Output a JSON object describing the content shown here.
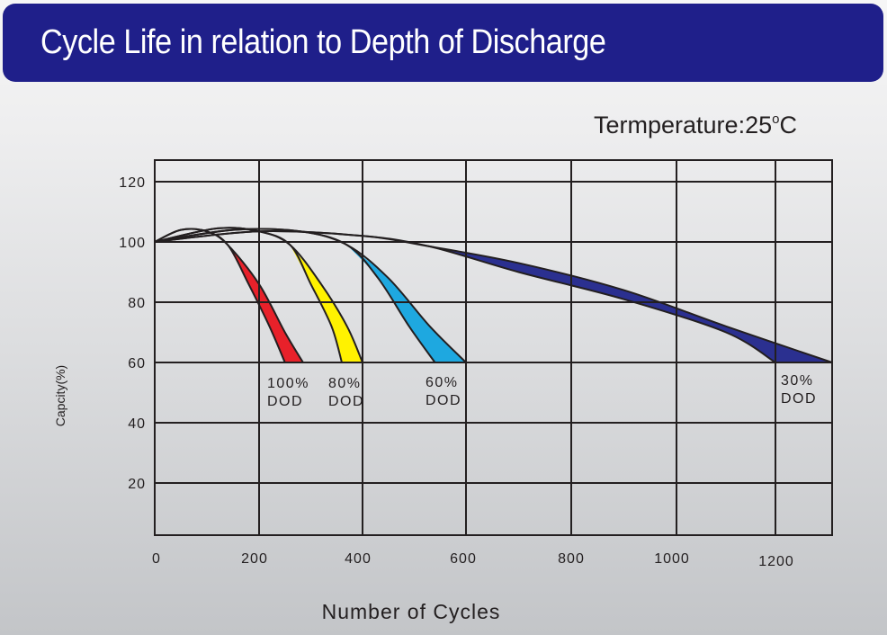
{
  "header": {
    "title": "Cycle Life in relation to Depth of Discharge"
  },
  "annotation": {
    "temperature_label": "Termperature:25",
    "temperature_unit_degree": "o",
    "temperature_unit": "C"
  },
  "chart_data": {
    "type": "area",
    "title": "Cycle Life in relation to Depth of Discharge",
    "subtitle": "Termperature:25°C",
    "xlabel": "Number of Cycles",
    "ylabel": "Capcity(%)",
    "xlim": [
      0,
      1300
    ],
    "ylim": [
      0,
      130
    ],
    "x_ticks": [
      0,
      200,
      400,
      600,
      800,
      1000,
      1200
    ],
    "x_tick_labels": [
      "0",
      "200",
      "400",
      "600",
      "800",
      "1000",
      "1200"
    ],
    "y_ticks": [
      20,
      40,
      60,
      80,
      100,
      120
    ],
    "y_tick_labels": [
      "20",
      "40",
      "60",
      "80",
      "100",
      "120"
    ],
    "grid": true,
    "series": [
      {
        "name": "100% DOD",
        "label_line1": "100%",
        "label_line2": "DOD",
        "color": "#e8212a",
        "upper": [
          [
            0,
            100
          ],
          [
            50,
            104
          ],
          [
            100,
            103.5
          ],
          [
            140,
            99
          ],
          [
            200,
            86
          ],
          [
            250,
            70
          ],
          [
            285,
            60
          ]
        ],
        "lower": [
          [
            0,
            100
          ],
          [
            50,
            104
          ],
          [
            100,
            103.5
          ],
          [
            140,
            99
          ],
          [
            180,
            86
          ],
          [
            220,
            72
          ],
          [
            250,
            60
          ]
        ]
      },
      {
        "name": "80% DOD",
        "label_line1": "80%",
        "label_line2": "DOD",
        "color": "#fff200",
        "upper": [
          [
            0,
            100
          ],
          [
            120,
            104.5
          ],
          [
            200,
            103.5
          ],
          [
            260,
            99
          ],
          [
            320,
            86
          ],
          [
            370,
            72
          ],
          [
            400,
            60
          ]
        ],
        "lower": [
          [
            0,
            100
          ],
          [
            120,
            104.5
          ],
          [
            200,
            103.5
          ],
          [
            260,
            99
          ],
          [
            300,
            86
          ],
          [
            340,
            72
          ],
          [
            360,
            60
          ]
        ]
      },
      {
        "name": "60% DOD",
        "label_line1": "60%",
        "label_line2": "DOD",
        "color": "#1ea8e0",
        "upper": [
          [
            0,
            100
          ],
          [
            150,
            104
          ],
          [
            280,
            103.5
          ],
          [
            370,
            99
          ],
          [
            450,
            88
          ],
          [
            530,
            72
          ],
          [
            600,
            60
          ]
        ],
        "lower": [
          [
            0,
            100
          ],
          [
            150,
            104
          ],
          [
            280,
            103.5
          ],
          [
            370,
            99
          ],
          [
            430,
            88
          ],
          [
            490,
            72
          ],
          [
            540,
            60
          ]
        ]
      },
      {
        "name": "30% DOD",
        "label_line1": "30%",
        "label_line2": "DOD",
        "color": "#2b3090",
        "upper": [
          [
            0,
            100
          ],
          [
            200,
            103.5
          ],
          [
            400,
            102
          ],
          [
            530,
            98.5
          ],
          [
            700,
            93
          ],
          [
            900,
            84
          ],
          [
            1100,
            72
          ],
          [
            1300,
            60
          ]
        ],
        "lower": [
          [
            0,
            100
          ],
          [
            200,
            103.5
          ],
          [
            400,
            102
          ],
          [
            530,
            98.5
          ],
          [
            700,
            90
          ],
          [
            900,
            81
          ],
          [
            1100,
            70
          ],
          [
            1200,
            60
          ]
        ]
      }
    ]
  }
}
